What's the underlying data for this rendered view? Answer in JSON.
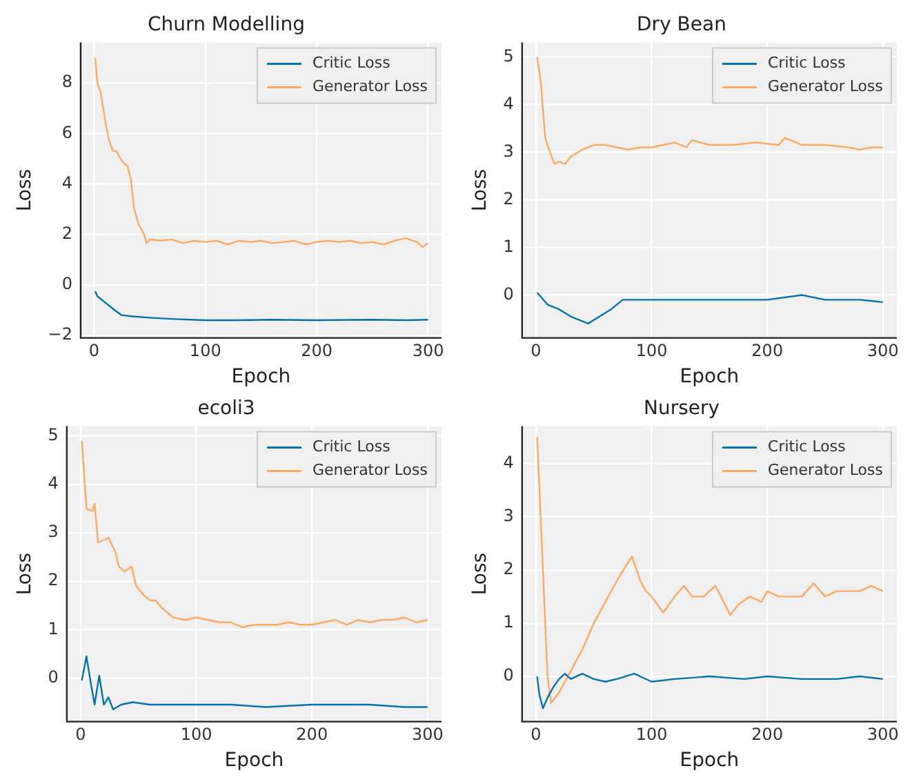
{
  "chart_data": [
    {
      "type": "line",
      "title": "Churn Modelling",
      "xlabel": "Epoch",
      "ylabel": "Loss",
      "xlim": [
        -12,
        312
      ],
      "xticks": [
        0,
        100,
        200,
        300
      ],
      "ylim": [
        -2.1,
        9.6
      ],
      "yticks": [
        -2,
        0,
        2,
        4,
        6,
        8
      ],
      "grid": true,
      "legend": "top right",
      "marker": "none",
      "line_style": "solid",
      "series": [
        {
          "name": "Critic Loss",
          "color": "#0173b2",
          "x": [
            1,
            3,
            10,
            20,
            25,
            35,
            50,
            70,
            100,
            130,
            160,
            200,
            250,
            280,
            300
          ],
          "values": [
            -0.25,
            -0.45,
            -0.7,
            -1.05,
            -1.2,
            -1.25,
            -1.3,
            -1.35,
            -1.4,
            -1.4,
            -1.38,
            -1.4,
            -1.38,
            -1.4,
            -1.38
          ]
        },
        {
          "name": "Generator Loss",
          "color": "#ffa860",
          "x": [
            1,
            3,
            6,
            10,
            13,
            17,
            20,
            25,
            30,
            33,
            36,
            40,
            45,
            47,
            50,
            60,
            70,
            80,
            90,
            100,
            110,
            120,
            130,
            140,
            150,
            160,
            170,
            180,
            190,
            200,
            210,
            220,
            230,
            240,
            250,
            260,
            270,
            280,
            290,
            295,
            300
          ],
          "values": [
            9.0,
            8.0,
            7.6,
            6.5,
            5.8,
            5.3,
            5.3,
            4.9,
            4.7,
            4.2,
            3.0,
            2.4,
            2.0,
            1.65,
            1.8,
            1.75,
            1.8,
            1.65,
            1.75,
            1.7,
            1.75,
            1.6,
            1.75,
            1.7,
            1.75,
            1.65,
            1.7,
            1.75,
            1.6,
            1.7,
            1.75,
            1.7,
            1.75,
            1.65,
            1.7,
            1.6,
            1.75,
            1.85,
            1.7,
            1.5,
            1.65
          ]
        }
      ]
    },
    {
      "type": "line",
      "title": "Dry Bean",
      "xlabel": "Epoch",
      "ylabel": "Loss",
      "xlim": [
        -12,
        312
      ],
      "xticks": [
        0,
        100,
        200,
        300
      ],
      "ylim": [
        -0.9,
        5.3
      ],
      "yticks": [
        0,
        1,
        2,
        3,
        4,
        5
      ],
      "grid": true,
      "legend": "top right",
      "marker": "none",
      "line_style": "solid",
      "series": [
        {
          "name": "Critic Loss",
          "color": "#0173b2",
          "x": [
            1,
            10,
            20,
            30,
            40,
            45,
            55,
            65,
            75,
            90,
            110,
            130,
            150,
            170,
            200,
            230,
            250,
            280,
            300
          ],
          "values": [
            0.05,
            -0.2,
            -0.3,
            -0.45,
            -0.55,
            -0.6,
            -0.45,
            -0.3,
            -0.1,
            -0.1,
            -0.1,
            -0.1,
            -0.1,
            -0.1,
            -0.1,
            0.0,
            -0.1,
            -0.1,
            -0.15
          ]
        },
        {
          "name": "Generator Loss",
          "color": "#ffa860",
          "x": [
            1,
            4,
            8,
            12,
            16,
            20,
            25,
            30,
            40,
            50,
            60,
            70,
            80,
            90,
            100,
            110,
            120,
            130,
            135,
            150,
            170,
            190,
            210,
            215,
            230,
            250,
            270,
            280,
            290,
            300
          ],
          "values": [
            5.0,
            4.5,
            3.3,
            3.0,
            2.75,
            2.8,
            2.75,
            2.9,
            3.05,
            3.15,
            3.15,
            3.1,
            3.05,
            3.1,
            3.1,
            3.15,
            3.2,
            3.1,
            3.25,
            3.15,
            3.15,
            3.2,
            3.15,
            3.3,
            3.15,
            3.15,
            3.1,
            3.05,
            3.1,
            3.1
          ]
        }
      ]
    },
    {
      "type": "line",
      "title": "ecoli3",
      "xlabel": "Epoch",
      "ylabel": "Loss",
      "xlim": [
        -12,
        312
      ],
      "xticks": [
        0,
        100,
        200,
        300
      ],
      "ylim": [
        -0.9,
        5.2
      ],
      "yticks": [
        0,
        1,
        2,
        3,
        4,
        5
      ],
      "grid": true,
      "legend": "top right",
      "marker": "none",
      "line_style": "solid",
      "series": [
        {
          "name": "Critic Loss",
          "color": "#0173b2",
          "x": [
            1,
            5,
            8,
            12,
            16,
            20,
            24,
            28,
            35,
            45,
            60,
            80,
            100,
            130,
            160,
            200,
            250,
            280,
            300
          ],
          "values": [
            -0.05,
            0.45,
            0.0,
            -0.55,
            0.05,
            -0.55,
            -0.4,
            -0.65,
            -0.55,
            -0.5,
            -0.55,
            -0.55,
            -0.55,
            -0.55,
            -0.6,
            -0.55,
            -0.55,
            -0.6,
            -0.6
          ]
        },
        {
          "name": "Generator Loss",
          "color": "#ffa860",
          "x": [
            1,
            5,
            10,
            12,
            15,
            20,
            24,
            30,
            33,
            38,
            44,
            48,
            55,
            60,
            65,
            70,
            80,
            90,
            100,
            110,
            120,
            130,
            140,
            150,
            160,
            170,
            180,
            190,
            200,
            210,
            220,
            230,
            240,
            250,
            260,
            270,
            280,
            290,
            300
          ],
          "values": [
            4.9,
            3.5,
            3.45,
            3.6,
            2.8,
            2.85,
            2.9,
            2.6,
            2.3,
            2.2,
            2.3,
            1.9,
            1.7,
            1.6,
            1.6,
            1.45,
            1.25,
            1.2,
            1.25,
            1.2,
            1.15,
            1.15,
            1.05,
            1.1,
            1.1,
            1.1,
            1.15,
            1.1,
            1.1,
            1.15,
            1.2,
            1.1,
            1.2,
            1.15,
            1.2,
            1.2,
            1.25,
            1.15,
            1.2
          ]
        }
      ]
    },
    {
      "type": "line",
      "title": "Nursery",
      "xlabel": "Epoch",
      "ylabel": "Loss",
      "xlim": [
        -12,
        312
      ],
      "xticks": [
        0,
        100,
        200,
        300
      ],
      "ylim": [
        -0.85,
        4.7
      ],
      "yticks": [
        0,
        1,
        2,
        3,
        4
      ],
      "grid": true,
      "legend": "top right",
      "marker": "none",
      "line_style": "solid",
      "series": [
        {
          "name": "Critic Loss",
          "color": "#0173b2",
          "x": [
            1,
            3,
            6,
            10,
            15,
            20,
            25,
            30,
            40,
            50,
            60,
            70,
            85,
            100,
            120,
            150,
            180,
            200,
            230,
            260,
            280,
            300
          ],
          "values": [
            0.0,
            -0.35,
            -0.6,
            -0.4,
            -0.2,
            -0.05,
            0.05,
            -0.05,
            0.05,
            -0.05,
            -0.1,
            -0.05,
            0.05,
            -0.1,
            -0.05,
            0.0,
            -0.05,
            0.0,
            -0.05,
            -0.05,
            0.0,
            -0.05
          ]
        },
        {
          "name": "Generator Loss",
          "color": "#ffa860",
          "x": [
            1,
            5,
            10,
            13,
            20,
            30,
            40,
            50,
            60,
            70,
            80,
            83,
            87,
            90,
            95,
            100,
            105,
            110,
            120,
            128,
            135,
            145,
            155,
            160,
            168,
            175,
            185,
            195,
            200,
            210,
            220,
            230,
            240,
            250,
            260,
            270,
            280,
            290,
            300
          ],
          "values": [
            4.5,
            2.5,
            0.0,
            -0.5,
            -0.3,
            0.1,
            0.5,
            1.0,
            1.4,
            1.8,
            2.15,
            2.25,
            2.0,
            1.8,
            1.6,
            1.5,
            1.35,
            1.2,
            1.5,
            1.7,
            1.5,
            1.5,
            1.7,
            1.5,
            1.15,
            1.35,
            1.5,
            1.4,
            1.6,
            1.5,
            1.5,
            1.5,
            1.75,
            1.5,
            1.6,
            1.6,
            1.6,
            1.7,
            1.6
          ]
        }
      ]
    }
  ]
}
